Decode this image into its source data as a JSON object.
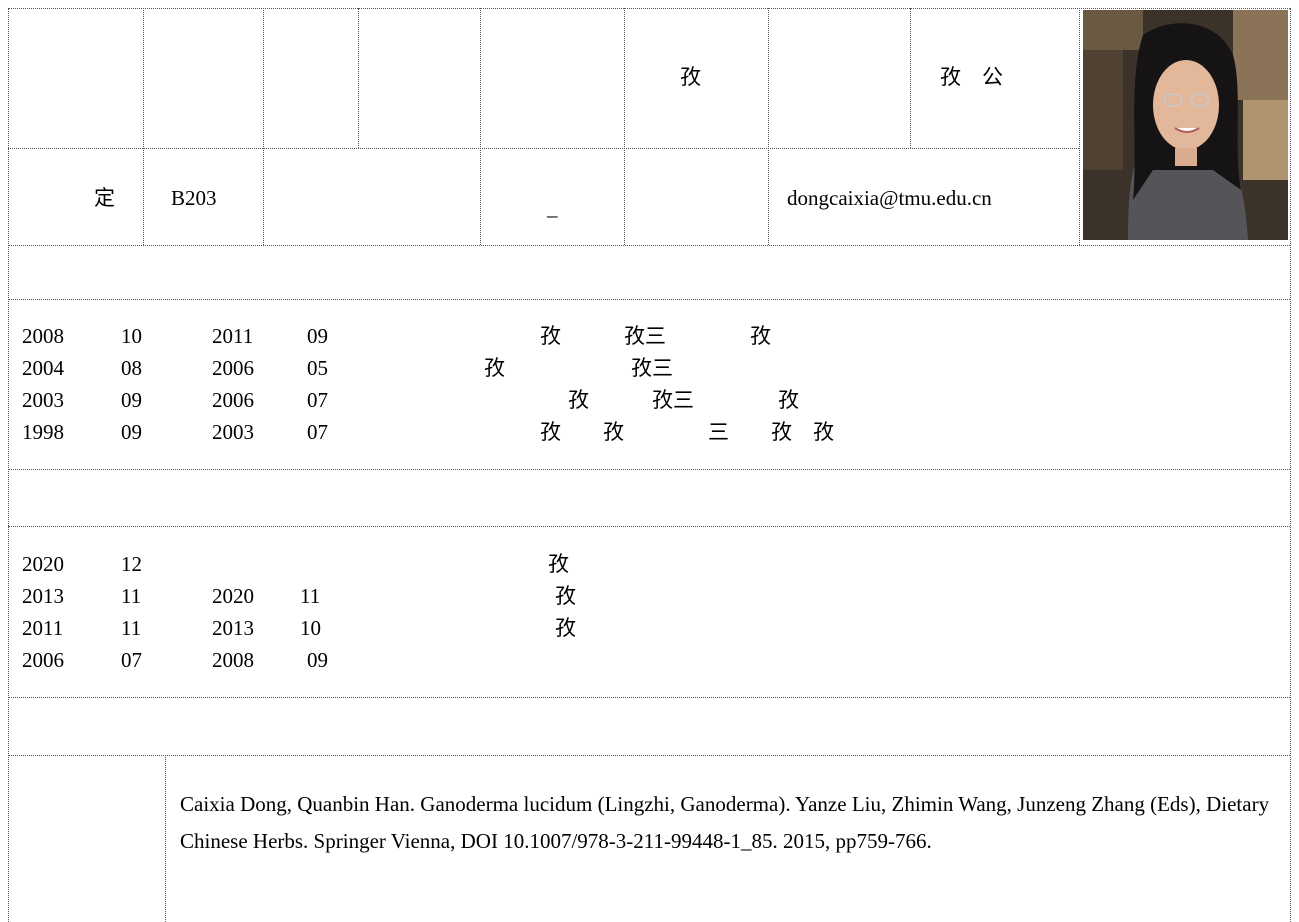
{
  "header_row": {
    "cell6": "孜",
    "cell8": "孜　公"
  },
  "info_row": {
    "label": "定",
    "room": "B203",
    "dash": "_",
    "email": "dongcaixia@tmu.edu.cn"
  },
  "education": [
    {
      "y1": "2008",
      "m1": "10",
      "y2": "2011",
      "m2": "09",
      "desc": "孜　　　孜三　　　　孜"
    },
    {
      "y1": "2004",
      "m1": "08",
      "y2": "2006",
      "m2": "05",
      "desc": "孜　　　　　　孜三"
    },
    {
      "y1": "2003",
      "m1": "09",
      "y2": "2006",
      "m2": "07",
      "desc": "孜　　　孜三　　　　孜"
    },
    {
      "y1": "1998",
      "m1": "09",
      "y2": "2003",
      "m2": "07",
      "desc": "孜　　孜　　　　三　　孜　孜"
    }
  ],
  "work": [
    {
      "y1": "2020",
      "m1": "12",
      "y2": "",
      "m2": "",
      "desc": "孜"
    },
    {
      "y1": "2013",
      "m1": "11",
      "y2": "2020",
      "m2": "11",
      "desc": "孜"
    },
    {
      "y1": "2011",
      "m1": "11",
      "y2": "2013",
      "m2": "10",
      "desc": "孜"
    },
    {
      "y1": "2006",
      "m1": "07",
      "y2": "2008",
      "m2": "09",
      "desc": ""
    }
  ],
  "publication": "Caixia Dong, Quanbin Han. Ganoderma lucidum (Lingzhi, Ganoderma). Yanze Liu, Zhimin Wang, Junzeng Zhang (Eds), Dietary Chinese Herbs. Springer Vienna, DOI 10.1007/978-3-211-99448-1_85. 2015, pp759-766."
}
